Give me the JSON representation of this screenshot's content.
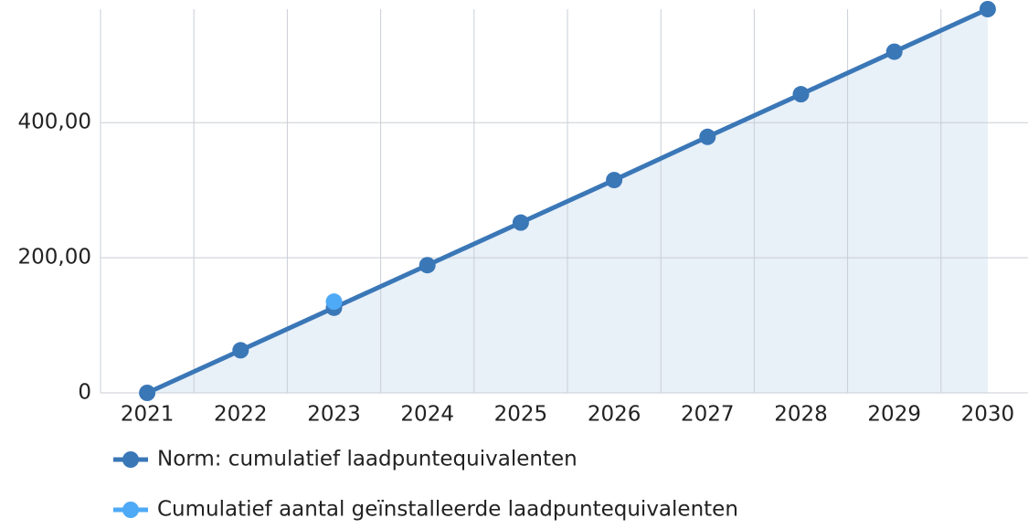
{
  "chart_data": {
    "type": "line",
    "categories": [
      "2021",
      "2022",
      "2023",
      "2024",
      "2025",
      "2026",
      "2027",
      "2028",
      "2029",
      "2030"
    ],
    "series": [
      {
        "name": "Norm: cumulatief laadpuntequivalenten",
        "color": "#3a77b7",
        "area_color": "#e8f0f8",
        "values": [
          0,
          63,
          126,
          189,
          252,
          315,
          379,
          442,
          505,
          568
        ]
      },
      {
        "name": "Cumulatief aantal geïnstalleerde laadpuntequivalenten",
        "color": "#4eaaf7",
        "values": [
          null,
          null,
          135,
          null,
          null,
          null,
          null,
          null,
          null,
          null
        ]
      }
    ],
    "ylim": [
      0,
      568
    ],
    "yticks": [
      0,
      {
        "value": 200,
        "label": "200,00"
      },
      {
        "value": 400,
        "label": "400,00"
      }
    ],
    "grid": true
  }
}
